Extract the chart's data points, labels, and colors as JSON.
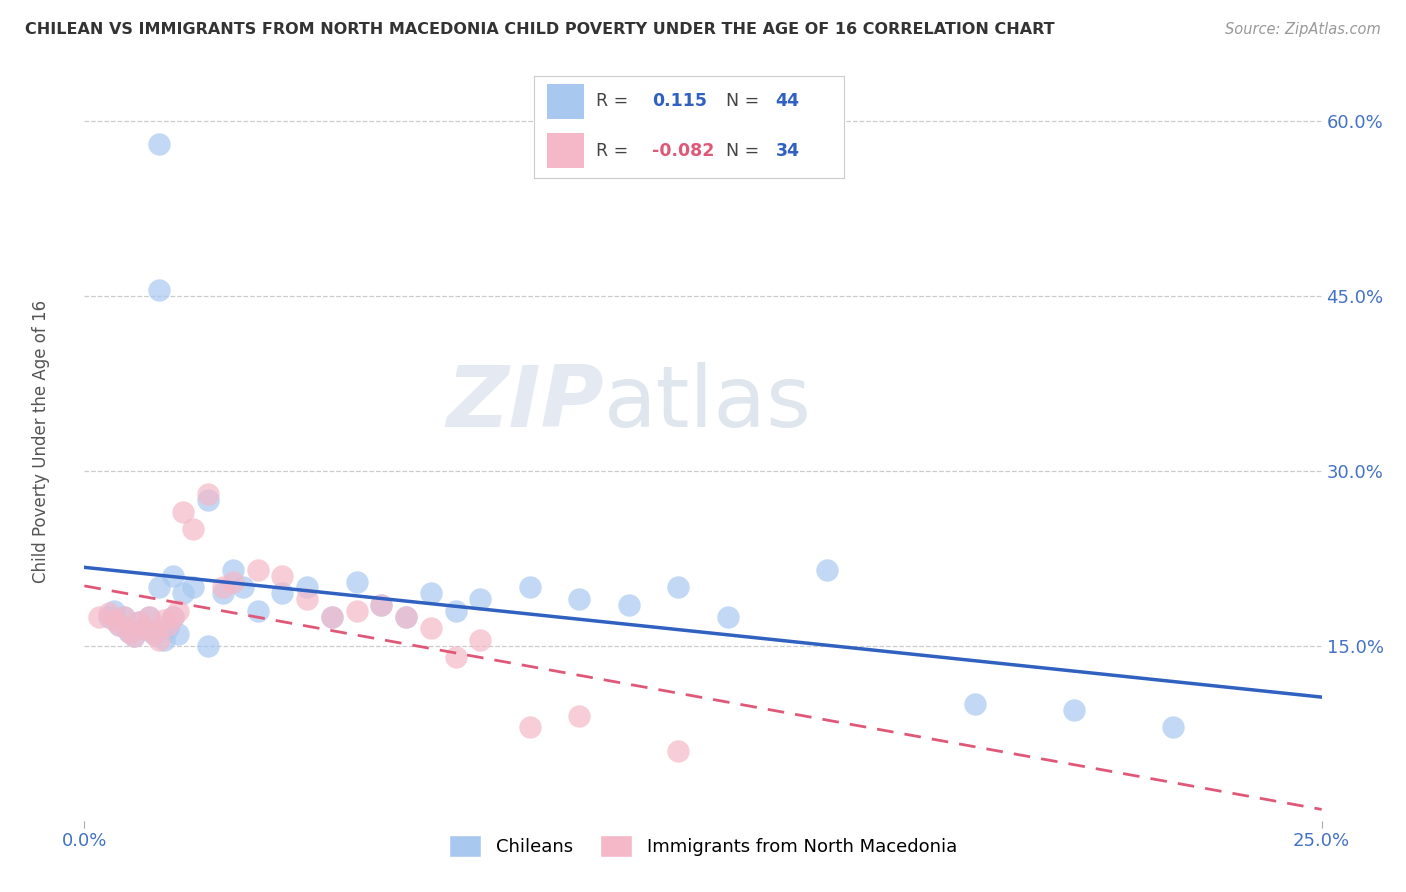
{
  "title": "CHILEAN VS IMMIGRANTS FROM NORTH MACEDONIA CHILD POVERTY UNDER THE AGE OF 16 CORRELATION CHART",
  "source": "Source: ZipAtlas.com",
  "ylabel": "Child Poverty Under the Age of 16",
  "xlim": [
    0.0,
    0.25
  ],
  "ylim": [
    0.0,
    0.65
  ],
  "y_tick_labels": [
    "15.0%",
    "30.0%",
    "45.0%",
    "60.0%"
  ],
  "y_tick_positions": [
    0.15,
    0.3,
    0.45,
    0.6
  ],
  "chilean_R": 0.115,
  "chilean_N": 44,
  "macedonian_R": -0.082,
  "macedonian_N": 34,
  "chilean_color": "#a8c8f0",
  "macedonian_color": "#f4b8c8",
  "chilean_line_color": "#3060c0",
  "macedonian_line_color": "#e05878",
  "background_color": "#ffffff",
  "chilean_x": [
    0.005,
    0.006,
    0.007,
    0.008,
    0.009,
    0.01,
    0.011,
    0.012,
    0.013,
    0.014,
    0.015,
    0.016,
    0.017,
    0.018,
    0.019,
    0.015,
    0.018,
    0.02,
    0.022,
    0.025,
    0.028,
    0.03,
    0.032,
    0.035,
    0.04,
    0.045,
    0.05,
    0.055,
    0.06,
    0.065,
    0.07,
    0.075,
    0.08,
    0.09,
    0.1,
    0.11,
    0.12,
    0.13,
    0.15,
    0.18,
    0.2,
    0.22,
    0.015,
    0.025
  ],
  "chilean_y": [
    0.175,
    0.18,
    0.168,
    0.175,
    0.162,
    0.158,
    0.17,
    0.165,
    0.175,
    0.16,
    0.58,
    0.155,
    0.165,
    0.175,
    0.16,
    0.2,
    0.21,
    0.195,
    0.2,
    0.275,
    0.195,
    0.215,
    0.2,
    0.18,
    0.195,
    0.2,
    0.175,
    0.205,
    0.185,
    0.175,
    0.195,
    0.18,
    0.19,
    0.2,
    0.19,
    0.185,
    0.2,
    0.175,
    0.215,
    0.1,
    0.095,
    0.08,
    0.455,
    0.15
  ],
  "macedonian_x": [
    0.003,
    0.005,
    0.006,
    0.007,
    0.008,
    0.009,
    0.01,
    0.011,
    0.012,
    0.013,
    0.014,
    0.015,
    0.016,
    0.017,
    0.018,
    0.019,
    0.02,
    0.022,
    0.025,
    0.028,
    0.03,
    0.035,
    0.04,
    0.045,
    0.05,
    0.055,
    0.06,
    0.065,
    0.07,
    0.075,
    0.08,
    0.09,
    0.1,
    0.12
  ],
  "macedonian_y": [
    0.175,
    0.178,
    0.172,
    0.168,
    0.175,
    0.162,
    0.158,
    0.17,
    0.165,
    0.175,
    0.16,
    0.155,
    0.172,
    0.168,
    0.175,
    0.18,
    0.265,
    0.25,
    0.28,
    0.2,
    0.205,
    0.215,
    0.21,
    0.19,
    0.175,
    0.18,
    0.185,
    0.175,
    0.165,
    0.14,
    0.155,
    0.08,
    0.09,
    0.06
  ]
}
